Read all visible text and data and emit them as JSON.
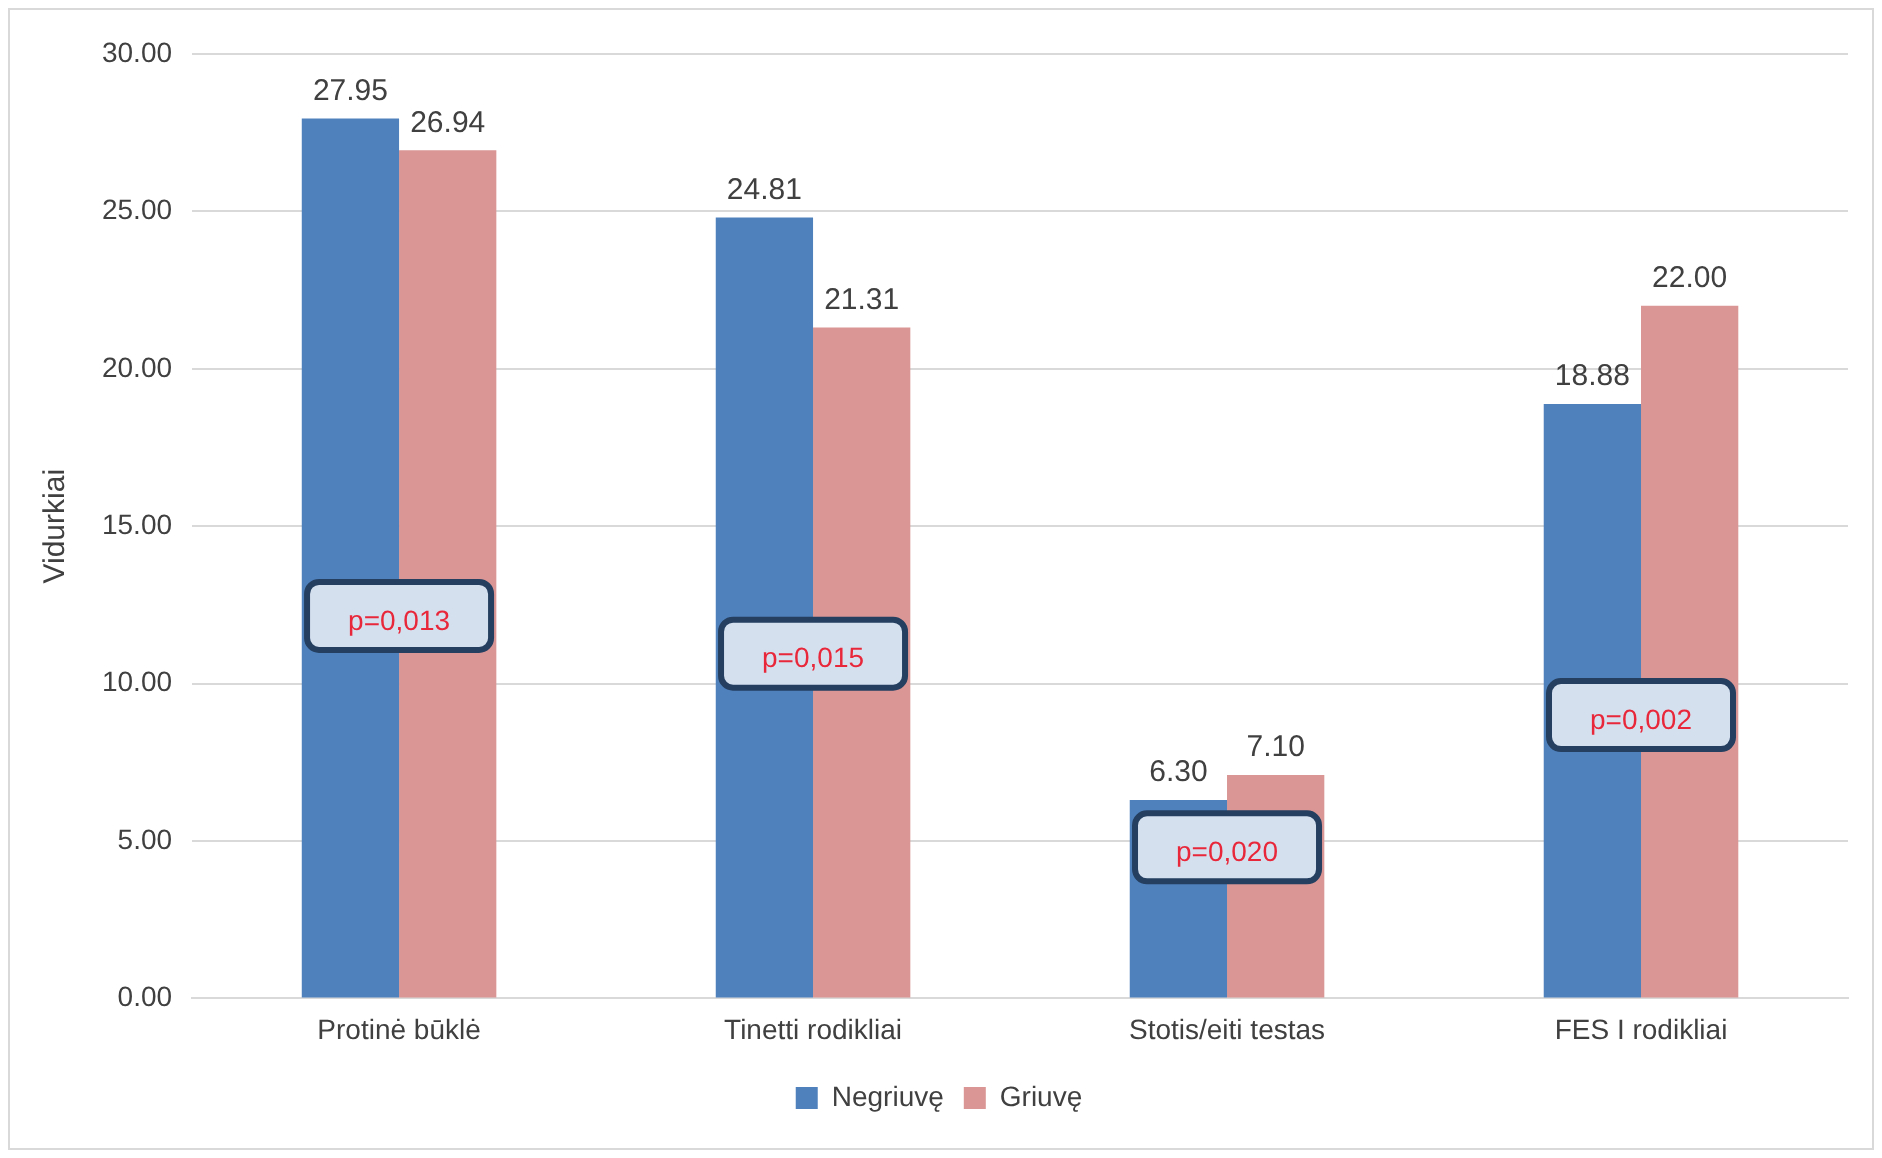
{
  "chart_data": {
    "type": "bar",
    "ylabel": "Vidurkiai",
    "categories": [
      "Protinė būklė",
      "Tinetti rodikliai",
      "Stotis/eiti testas",
      "FES I rodikliai"
    ],
    "series": [
      {
        "name": "Negriuvę",
        "color": "#4f81bd",
        "values": [
          27.95,
          24.81,
          6.3,
          18.88
        ],
        "value_labels": [
          "27.95",
          "24.81",
          "6.30",
          "18.88"
        ]
      },
      {
        "name": "Griuvę",
        "color": "#d99694",
        "values": [
          26.94,
          21.31,
          7.1,
          22.0
        ],
        "value_labels": [
          "26.94",
          "21.31",
          "7.10",
          "22.00"
        ]
      }
    ],
    "ylim": [
      0,
      30
    ],
    "yticks": [
      {
        "value": 0,
        "label": "0.00"
      },
      {
        "value": 5,
        "label": "5.00"
      },
      {
        "value": 10,
        "label": "10.00"
      },
      {
        "value": 15,
        "label": "15.00"
      },
      {
        "value": 20,
        "label": "20.00"
      },
      {
        "value": 25,
        "label": "25.00"
      },
      {
        "value": 30,
        "label": "30.00"
      }
    ],
    "grid": "y",
    "legend": "bottom",
    "annotations": [
      "p=0,013",
      "p=0,015",
      "p=0,020",
      "p=0,002"
    ]
  }
}
